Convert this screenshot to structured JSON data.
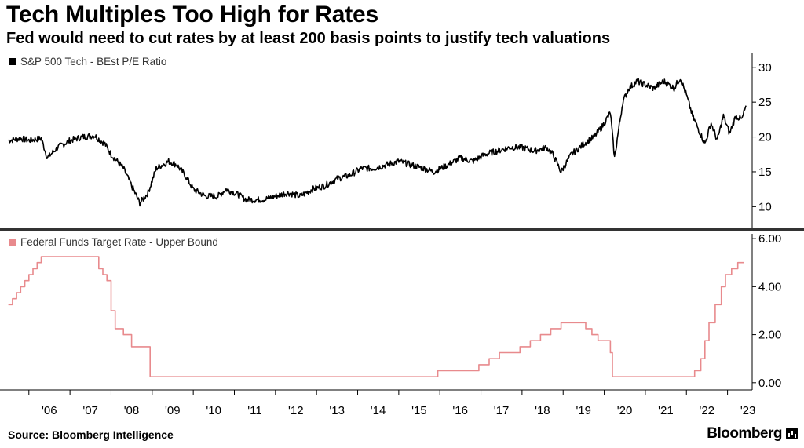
{
  "header": {
    "title": "Tech Multiples Too High for Rates",
    "subtitle": "Fed would need to cut rates by at least 200 basis points to justify tech valuations"
  },
  "footer": {
    "source": "Source: Bloomberg Intelligence",
    "brand": "Bloomberg"
  },
  "colors": {
    "pe_line": "#000000",
    "rate_line": "#e88a8d",
    "divider": "#333333",
    "axis": "#000000"
  },
  "chart_data": [
    {
      "type": "line",
      "panel": "top",
      "title": "",
      "xlabel": "",
      "ylabel": "",
      "ylim": [
        7,
        32
      ],
      "yticks": [
        10,
        15,
        20,
        25,
        30
      ],
      "ytick_labels": [
        "10",
        "15",
        "20",
        "25",
        "30"
      ],
      "legend_position": "top-left",
      "grid": false,
      "series": [
        {
          "name": "S&P 500 Tech - BEst P/E Ratio",
          "x": [
            2005.5,
            2005.8,
            2006.0,
            2006.3,
            2006.45,
            2006.7,
            2007.0,
            2007.3,
            2007.6,
            2007.85,
            2008.0,
            2008.3,
            2008.5,
            2008.7,
            2008.9,
            2009.1,
            2009.4,
            2009.6,
            2009.8,
            2010.0,
            2010.3,
            2010.6,
            2010.8,
            2011.0,
            2011.3,
            2011.7,
            2012.0,
            2012.3,
            2012.6,
            2012.9,
            2013.2,
            2013.5,
            2013.8,
            2014.1,
            2014.4,
            2014.7,
            2015.0,
            2015.3,
            2015.6,
            2015.85,
            2016.2,
            2016.5,
            2016.8,
            2017.1,
            2017.4,
            2017.7,
            2018.0,
            2018.3,
            2018.6,
            2018.75,
            2018.95,
            2019.2,
            2019.5,
            2019.75,
            2019.95,
            2020.05,
            2020.15,
            2020.25,
            2020.45,
            2020.6,
            2020.8,
            2021.0,
            2021.2,
            2021.45,
            2021.7,
            2021.85,
            2022.0,
            2022.15,
            2022.3,
            2022.45,
            2022.6,
            2022.75,
            2022.9,
            2023.05,
            2023.2,
            2023.35,
            2023.45
          ],
          "values": [
            19.5,
            19.8,
            19.5,
            19.8,
            17.0,
            18.5,
            19.5,
            20.0,
            20.2,
            19.0,
            17.5,
            15.5,
            13.0,
            10.5,
            12.0,
            15.5,
            16.5,
            16.0,
            14.5,
            12.5,
            11.5,
            11.5,
            12.5,
            12.0,
            11.0,
            11.0,
            11.5,
            12.0,
            11.5,
            12.5,
            13.0,
            14.0,
            14.5,
            15.5,
            15.5,
            16.0,
            16.5,
            16.0,
            15.5,
            15.0,
            16.0,
            17.0,
            16.5,
            17.5,
            18.0,
            18.5,
            18.5,
            18.0,
            18.5,
            17.5,
            15.0,
            17.5,
            19.0,
            20.0,
            21.5,
            22.5,
            23.5,
            17.0,
            25.0,
            27.0,
            28.0,
            27.5,
            27.0,
            28.0,
            27.0,
            28.5,
            26.0,
            23.0,
            21.0,
            19.0,
            22.0,
            19.5,
            23.0,
            20.5,
            23.0,
            22.5,
            24.5
          ]
        }
      ]
    },
    {
      "type": "line",
      "panel": "bottom",
      "title": "",
      "xlabel": "",
      "ylabel": "",
      "ylim": [
        -0.3,
        6.2
      ],
      "yticks": [
        0,
        2,
        4,
        6
      ],
      "ytick_labels": [
        "0.00",
        "2.00",
        "4.00",
        "6.00"
      ],
      "legend_position": "top-left",
      "grid": false,
      "series": [
        {
          "name": "Federal Funds Target Rate - Upper Bound",
          "x": [
            2005.5,
            2005.6,
            2005.7,
            2005.8,
            2005.9,
            2006.0,
            2006.1,
            2006.2,
            2006.3,
            2006.45,
            2007.7,
            2007.8,
            2007.9,
            2008.0,
            2008.1,
            2008.3,
            2008.5,
            2008.95,
            2015.95,
            2016.95,
            2017.2,
            2017.45,
            2017.95,
            2018.2,
            2018.45,
            2018.7,
            2018.95,
            2019.55,
            2019.7,
            2019.85,
            2020.15,
            2020.2,
            2021.9,
            2022.2,
            2022.35,
            2022.45,
            2022.55,
            2022.7,
            2022.85,
            2022.95,
            2023.1,
            2023.25,
            2023.4
          ],
          "values": [
            3.25,
            3.5,
            3.75,
            4.0,
            4.25,
            4.5,
            4.75,
            5.0,
            5.25,
            5.25,
            4.75,
            4.5,
            4.25,
            3.0,
            2.25,
            2.0,
            1.5,
            0.25,
            0.5,
            0.75,
            1.0,
            1.25,
            1.5,
            1.75,
            2.0,
            2.25,
            2.5,
            2.25,
            2.0,
            1.75,
            1.25,
            0.25,
            0.25,
            0.5,
            1.0,
            1.75,
            2.5,
            3.25,
            4.0,
            4.5,
            4.75,
            5.0,
            5.0
          ]
        }
      ]
    }
  ],
  "x_axis": {
    "tick_positions": [
      2006,
      2007,
      2008,
      2009,
      2010,
      2011,
      2012,
      2013,
      2014,
      2015,
      2016,
      2017,
      2018,
      2019,
      2020,
      2021,
      2022,
      2023
    ],
    "tick_labels": [
      "'06",
      "'07",
      "'08",
      "'09",
      "'10",
      "'11",
      "'12",
      "'13",
      "'14",
      "'15",
      "'16",
      "'17",
      "'18",
      "'19",
      "'20",
      "'21",
      "'22",
      "'23"
    ],
    "xlim": [
      2005.45,
      2023.6
    ]
  }
}
